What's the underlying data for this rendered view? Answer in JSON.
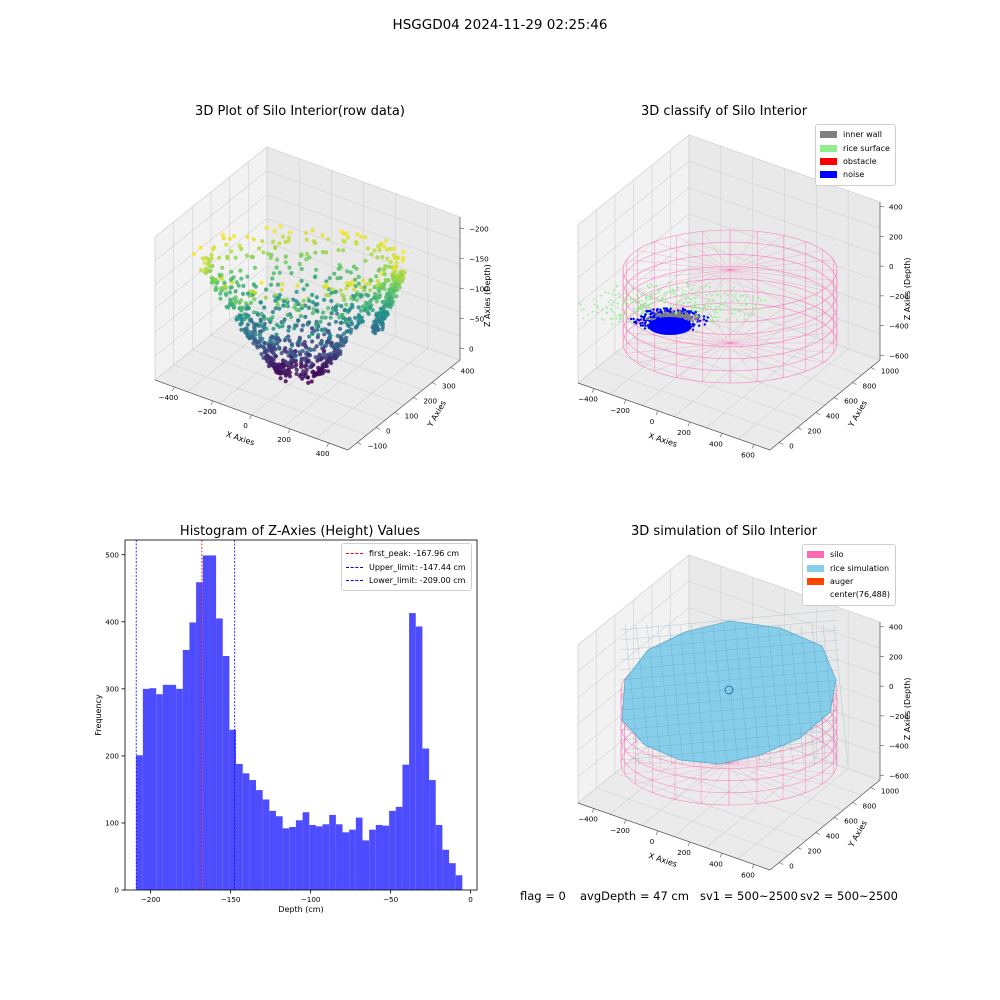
{
  "suptitle": "HSGGD04 2024-11-29 02:25:46",
  "colors": {
    "histogram_bar": "#4d4dff",
    "first_peak_line": "#ff0000",
    "limit_line": "#0000ff",
    "inner_wall": "#808080",
    "rice_surface": "#90ee90",
    "obstacle": "#ff0000",
    "noise": "#0000ff",
    "silo": "#ff69b4",
    "rice_simulation": "#87ceeb",
    "auger": "#ff4500",
    "viridis": [
      "#440154",
      "#3b528b",
      "#21918c",
      "#5ec962",
      "#fde725"
    ]
  },
  "chart_data": [
    {
      "type": "scatter",
      "title": "3D Plot of Silo Interior(row data)",
      "projection": "3d",
      "colormap": "viridis",
      "xlabel": "X Axies",
      "ylabel": "Y Axies",
      "zlabel": "Z Axies (Depth)",
      "xticks": [
        "−400",
        "−200",
        "0",
        "200",
        "400"
      ],
      "yticks": [
        "−100",
        "0",
        "100",
        "200",
        "300",
        "400"
      ],
      "zticks": [
        "0",
        "−50",
        "−100",
        "−150",
        "−200"
      ],
      "zlim": [
        -215,
        0
      ],
      "grid": true
    },
    {
      "type": "scatter",
      "title": "3D classify of Silo Interior",
      "projection": "3d",
      "xlabel": "X Axies",
      "ylabel": "Y Axies",
      "zlabel": "Z Axies (Depth)",
      "xticks": [
        "−400",
        "−200",
        "0",
        "200",
        "400",
        "600"
      ],
      "yticks": [
        "0",
        "200",
        "400",
        "600",
        "800",
        "1000"
      ],
      "zticks": [
        "400",
        "200",
        "0",
        "−200",
        "−400",
        "−600"
      ],
      "legend": [
        "inner wall",
        "rice surface",
        "obstacle",
        "noise"
      ],
      "legend_position": "top-right",
      "grid": true
    },
    {
      "type": "bar",
      "title": "Histogram of Z-Axies (Height) Values",
      "xlabel": "Depth (cm)",
      "ylabel": "Frequency",
      "xlim": [
        -216,
        4
      ],
      "ylim": [
        0,
        522
      ],
      "xticks": [
        "−200",
        "−150",
        "−100",
        "−50",
        "0"
      ],
      "xtick_values": [
        -200,
        -150,
        -100,
        -50,
        0
      ],
      "yticks": [
        "0",
        "100",
        "200",
        "300",
        "400",
        "500"
      ],
      "ytick_values": [
        0,
        100,
        200,
        300,
        400,
        500
      ],
      "bin_start": -209.0,
      "bin_width": 4.16,
      "values": [
        201,
        300,
        301,
        292,
        306,
        306,
        300,
        358,
        399,
        459,
        499,
        499,
        405,
        349,
        239,
        188,
        174,
        164,
        149,
        135,
        118,
        110,
        92,
        94,
        104,
        116,
        97,
        95,
        98,
        112,
        98,
        86,
        90,
        108,
        74,
        90,
        97,
        96,
        118,
        124,
        187,
        413,
        393,
        211,
        164,
        97,
        60,
        40,
        22
      ],
      "lines": [
        {
          "label": "first_peak: -167.96 cm",
          "x": -167.96,
          "color": "#ff0000"
        },
        {
          "label": "Upper_limit: -147.44 cm",
          "x": -147.44,
          "color": "#0000ff"
        },
        {
          "label": "Lower_limit: -209.00 cm",
          "x": -209.0,
          "color": "#0000ff"
        }
      ],
      "legend_position": "top-right"
    },
    {
      "type": "scatter",
      "title": "3D simulation of Silo Interior",
      "projection": "3d",
      "xlabel": "X Axies",
      "ylabel": "Y Axies",
      "zlabel": "Z Axies (Depth)",
      "xticks": [
        "−400",
        "−200",
        "0",
        "200",
        "400",
        "600"
      ],
      "yticks": [
        "0",
        "200",
        "400",
        "600",
        "800",
        "1000"
      ],
      "zticks": [
        "400",
        "200",
        "0",
        "−200",
        "−400",
        "−600"
      ],
      "legend": [
        "silo",
        "rice simulation",
        "auger",
        "center(76,488)"
      ],
      "legend_position": "top-right",
      "grid": true
    }
  ],
  "footer": {
    "flag": "flag = 0",
    "avg_depth": "avgDepth = 47 cm",
    "sv1": "sv1 = 500~2500",
    "sv2": "sv2 = 500~2500"
  }
}
